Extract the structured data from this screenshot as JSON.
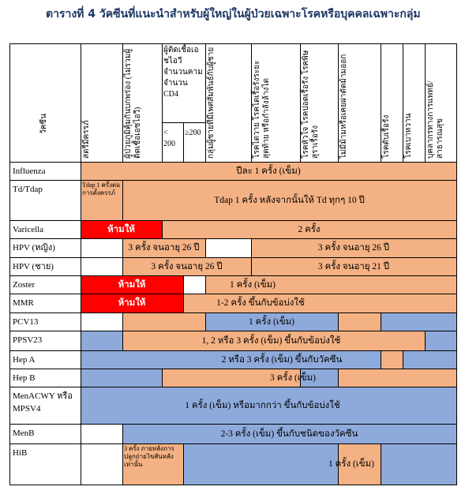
{
  "title": "ตารางที่ 4 วัคซีนที่แนะนำสำหรับผู้ใหญ่ในผู้ป่วยเฉพาะโรคหรือบุคคลเฉพาะกลุ่ม",
  "table": {
    "header": {
      "vaccine": "วัคซีน",
      "columns": [
        "สตรีมีครรภ์",
        "ผู้ป่วยภูมิคุ้มกันบกพร่อง (ไม่รวมผู้ติดเชื้อเอชไอวี)",
        "กลุ่มผู้ชายที่มีเพศสัมพันธ์กับผู้ชาย",
        "โรคไตวาย โรคไตเรื้อรังระยะสุดท้าย หรือกำลังล้างไต",
        "โรคหัวใจ โรคปอดเรื้อรัง โรคพิษสุราเรื้อรัง",
        "ไม่มีม้ามหรือเคยผ่าตัดม้ามออก",
        "โรคตับเรื้อรัง",
        "โรคเบาหวาน",
        "บุคลากรทางการแพทย์/สาธารณสุข"
      ],
      "hiv_group": "ผู้ติดเชื้อเอชไอวี จำนวนคาม จำนวน CD4",
      "hiv_sub": [
        "< 200",
        "≥200"
      ]
    },
    "rows": [
      {
        "vaccine": "Influenza",
        "notes": [
          "ปีละ 1 ครั้ง (เข็ม)"
        ]
      },
      {
        "vaccine": "Td/Tdap",
        "notes": [
          "Tdap 1 ครั้งต่อการตั้งครรภ์",
          "Tdap 1 ครั้ง หลังจากนั้นให้ Td ทุกๆ 10 ปี"
        ]
      },
      {
        "vaccine": "Varicella",
        "notes": [
          "ห้ามให้",
          "2 ครั้ง"
        ]
      },
      {
        "vaccine": "HPV (หญิง)",
        "notes": [
          "3 ครั้ง จนอายุ 26 ปี",
          "3 ครั้ง จนอายุ 26 ปี"
        ]
      },
      {
        "vaccine": "HPV (ชาย)",
        "notes": [
          "3 ครั้ง จนอายุ 26 ปี",
          "3 ครั้ง จนอายุ 21 ปี"
        ]
      },
      {
        "vaccine": "Zoster",
        "notes": [
          "ห้ามให้",
          "1 ครั้ง (เข็ม)"
        ]
      },
      {
        "vaccine": "MMR",
        "notes": [
          "ห้ามให้",
          "1-2 ครั้ง ขึ้นกับข้อบ่งใช้"
        ]
      },
      {
        "vaccine": "PCV13",
        "notes": [
          "1 ครั้ง (เข็ม)"
        ]
      },
      {
        "vaccine": "PPSV23",
        "notes": [
          "1, 2 หรือ 3 ครั้ง (เข็ม) ขึ้นกับข้อบ่งใช้"
        ]
      },
      {
        "vaccine": "Hep A",
        "notes": [
          "2 หรือ 3 ครั้ง (เข็ม) ขึ้นกับวัคซีน"
        ]
      },
      {
        "vaccine": "Hep B",
        "notes": [
          "3 ครั้ง (เข็ม)"
        ]
      },
      {
        "vaccine": "MenACWY หรือ MPSV4",
        "notes": [
          "1 ครั้ง (เข็ม) หรือมากกว่า ขึ้นกับข้อบ่งใช้"
        ]
      },
      {
        "vaccine": "MenB",
        "notes": [
          "2-3 ครั้ง (เข็ม) ขึ้นกับชนิดของวัคซีน"
        ]
      },
      {
        "vaccine": "HiB",
        "notes": [
          "3 ครั้ง ภายหลังการปลูกถ่ายไขสันหลังเท่านั้น",
          "1 ครั้ง (เข็ม)"
        ]
      }
    ]
  }
}
